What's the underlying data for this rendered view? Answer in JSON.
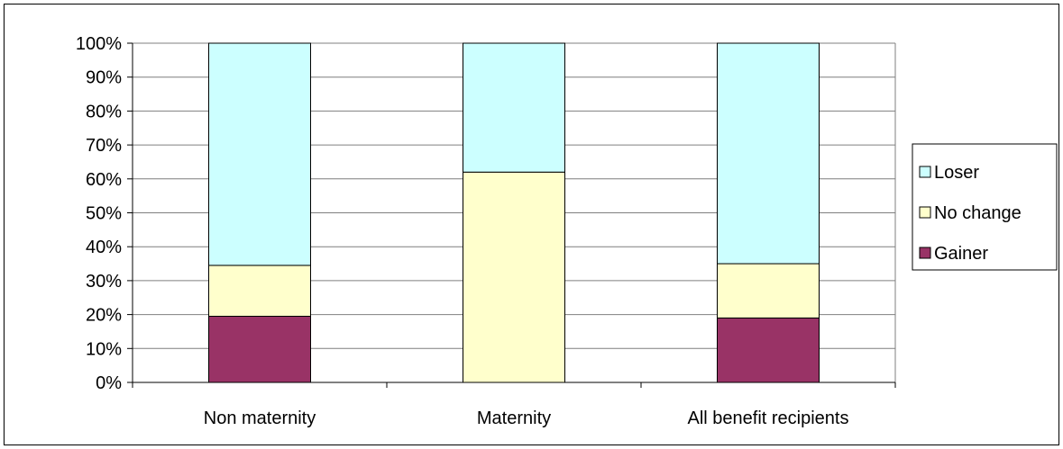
{
  "chart_data": {
    "type": "bar",
    "stacked": true,
    "categories": [
      "Non maternity",
      "Maternity",
      "All benefit recipients"
    ],
    "series": [
      {
        "name": "Gainer",
        "values": [
          19.5,
          0,
          19
        ],
        "color": "#993366"
      },
      {
        "name": "No change",
        "values": [
          15,
          62,
          16
        ],
        "color": "#FFFFCC"
      },
      {
        "name": "Loser",
        "values": [
          65.5,
          38,
          65
        ],
        "color": "#CCFFFF"
      }
    ],
    "legend_order": [
      "Loser",
      "No change",
      "Gainer"
    ],
    "yticks": [
      "0%",
      "10%",
      "20%",
      "30%",
      "40%",
      "50%",
      "60%",
      "70%",
      "80%",
      "90%",
      "100%"
    ],
    "ylim": [
      0,
      100
    ],
    "grid": true,
    "legend_position": "right",
    "title": "",
    "xlabel": "",
    "ylabel": ""
  }
}
